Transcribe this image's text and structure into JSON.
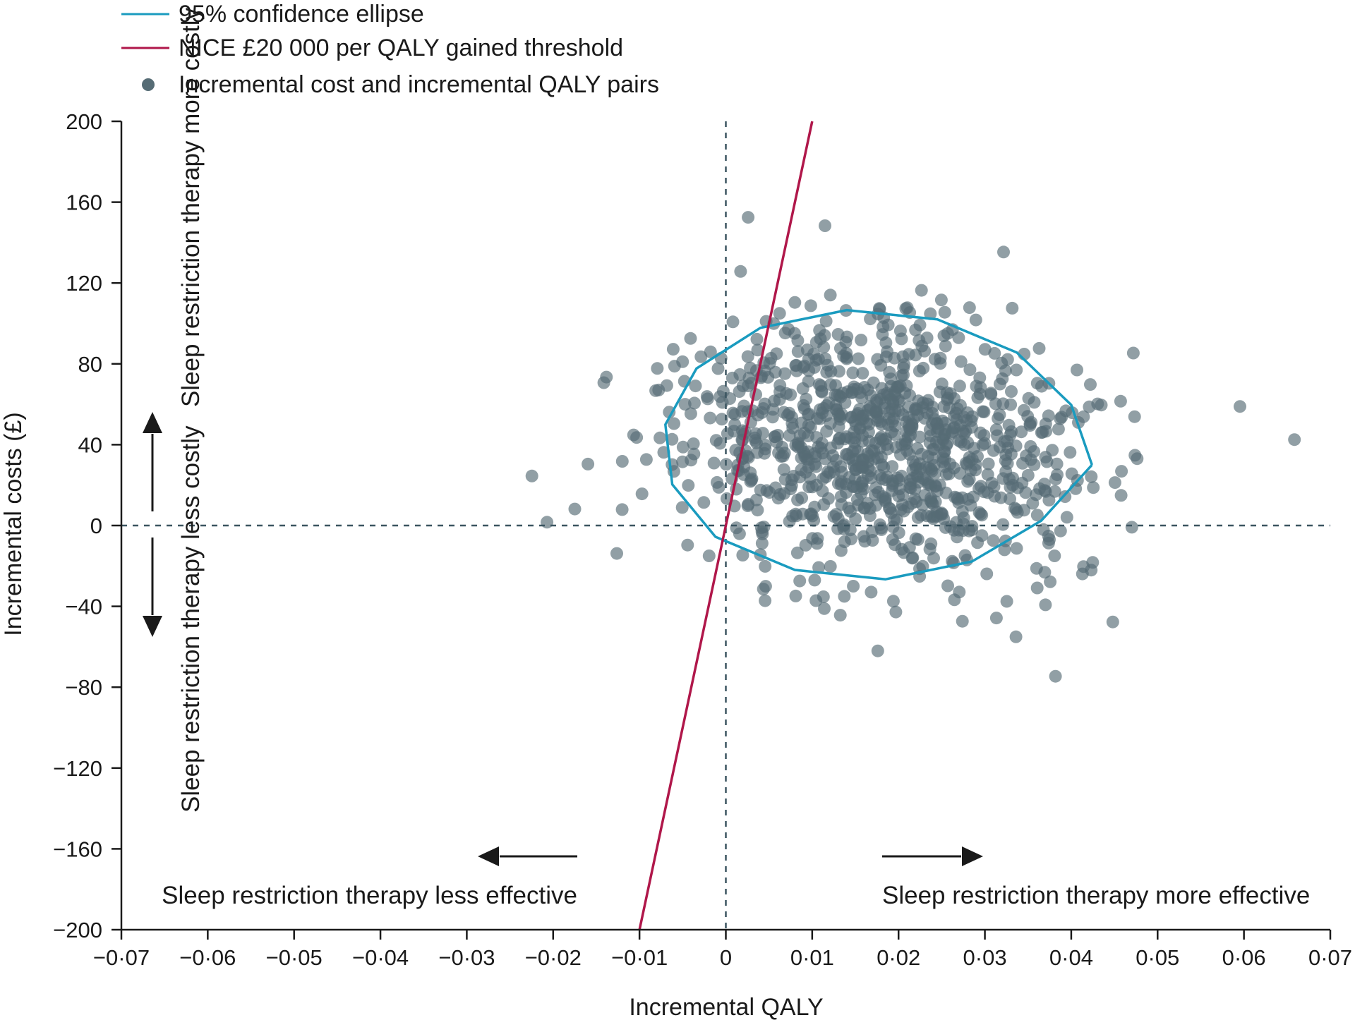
{
  "chart_data": {
    "type": "scatter",
    "xlabel": "Incremental QALY",
    "ylabel": "Incremental costs (£)",
    "xlim": [
      -0.07,
      0.07
    ],
    "ylim": [
      -200,
      200
    ],
    "x_ticks": [
      -0.07,
      -0.06,
      -0.05,
      -0.04,
      -0.03,
      -0.02,
      -0.01,
      0,
      0.01,
      0.02,
      0.03,
      0.04,
      0.05,
      0.06,
      0.07
    ],
    "x_tick_labels": [
      "−0·07",
      "−0·06",
      "−0·05",
      "−0·04",
      "−0·03",
      "−0·02",
      "−0·01",
      "0",
      "0·01",
      "0·02",
      "0·03",
      "0·04",
      "0·05",
      "0·06",
      "0·07"
    ],
    "y_ticks": [
      200,
      160,
      120,
      80,
      40,
      0,
      -40,
      -80,
      -120,
      -160,
      -200
    ],
    "y_tick_labels": [
      "200",
      "160",
      "120",
      "80",
      "40",
      "0",
      "−40",
      "−80",
      "−120",
      "−160",
      "−200"
    ],
    "grid": false,
    "legend_position": "top-left",
    "legend": [
      {
        "label": "95% confidence ellipse",
        "kind": "line",
        "color": "#1a9bbf"
      },
      {
        "label": "NICE £20 000 per QALY gained threshold",
        "kind": "line",
        "color": "#b0174a"
      },
      {
        "label": "Incremental cost and incremental QALY pairs",
        "kind": "marker",
        "color": "#566c75"
      }
    ],
    "reference_lines": [
      {
        "orientation": "horizontal",
        "y": 0,
        "style": "dashed",
        "color": "#3b5560"
      },
      {
        "orientation": "vertical",
        "x": 0,
        "style": "dashed",
        "color": "#3b5560"
      }
    ],
    "threshold_line": {
      "label": "NICE £20 000 per QALY gained threshold",
      "willingness_to_pay_per_qaly": 20000,
      "color": "#b0174a"
    },
    "confidence_ellipse": {
      "color": "#1a9bbf",
      "points": [
        [
          0.0424,
          30
        ],
        [
          0.04,
          59.7
        ],
        [
          0.0337,
          85.6
        ],
        [
          0.0245,
          102
        ],
        [
          0.014,
          106.6
        ],
        [
          0.004,
          97.8
        ],
        [
          -0.0034,
          77.7
        ],
        [
          -0.007,
          50
        ],
        [
          -0.0062,
          20.3
        ],
        [
          -0.0012,
          -5.6
        ],
        [
          0.008,
          -22
        ],
        [
          0.0185,
          -26.6
        ],
        [
          0.0285,
          -17.8
        ],
        [
          0.0365,
          2.3
        ],
        [
          0.0424,
          30
        ]
      ]
    },
    "scatter_color": "#566c75",
    "point_generation": {
      "count": 1000,
      "mean_x": 0.0177,
      "mean_y": 40,
      "sd_x": 0.0119,
      "sd_y": 32,
      "correlation": -0.18
    }
  },
  "annotations": {
    "more_costly": "Sleep restriction therapy more costly",
    "less_costly": "Sleep restriction therapy less costly",
    "less_effective": "Sleep restriction therapy less effective",
    "more_effective": "Sleep restriction therapy more effective"
  }
}
